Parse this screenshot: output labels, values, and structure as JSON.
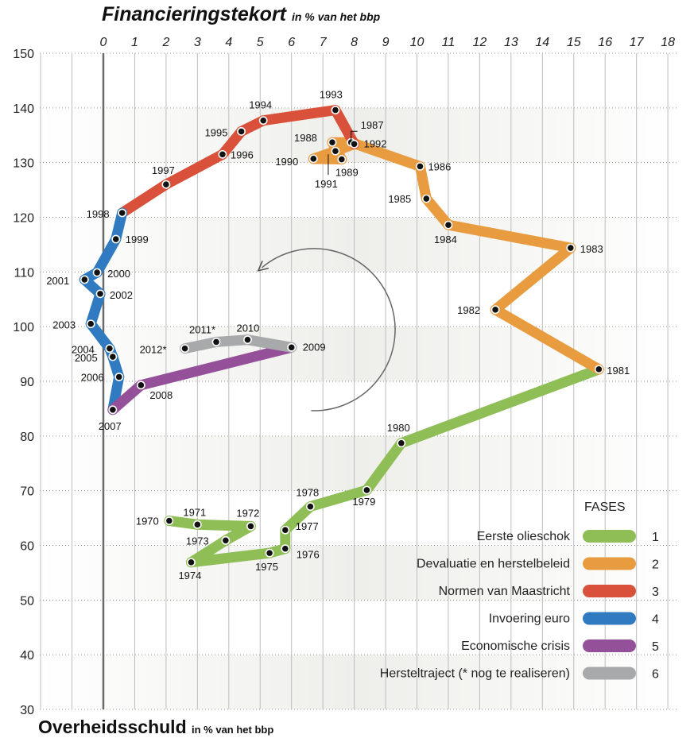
{
  "titles": {
    "top_main": "Financieringstekort",
    "top_sub": "in % van het bbp",
    "bottom_main": "Overheidsschuld",
    "bottom_sub": "in % van het bbp"
  },
  "chart_data": {
    "type": "line",
    "title": "Financieringstekort",
    "title_sub": "in % van het bbp",
    "xlabel": "Financieringstekort in % van het bbp",
    "ylabel": "Overheidsschuld in % van het bbp",
    "xlim": [
      -2,
      18
    ],
    "ylim": [
      30,
      150
    ],
    "x_ticks": [
      "0",
      "1",
      "2",
      "3",
      "4",
      "5",
      "6",
      "7",
      "8",
      "9",
      "10",
      "11",
      "12",
      "13",
      "14",
      "15",
      "16",
      "17",
      "18"
    ],
    "y_ticks": [
      "30",
      "40",
      "50",
      "60",
      "70",
      "80",
      "90",
      "100",
      "110",
      "120",
      "130",
      "140",
      "150"
    ],
    "grid": true,
    "legend_position": "bottom-right",
    "legend_title": "FASES",
    "colors": {
      "1": "#8fbe57",
      "2": "#e89b3f",
      "3": "#d9513a",
      "4": "#2f7ac0",
      "5": "#95509a",
      "6": "#a7a9ab"
    },
    "phases": [
      {
        "id": "1",
        "name": "Eerste olieschok"
      },
      {
        "id": "2",
        "name": "Devaluatie en herstelbeleid"
      },
      {
        "id": "3",
        "name": "Normen van Maastricht"
      },
      {
        "id": "4",
        "name": "Invoering euro"
      },
      {
        "id": "5",
        "name": "Economische crisis"
      },
      {
        "id": "6",
        "name": "Hersteltraject (* nog te realiseren)"
      }
    ],
    "points": [
      {
        "year": "1970",
        "x": 2.1,
        "y": 64.5,
        "phase": "1"
      },
      {
        "year": "1971",
        "x": 3.0,
        "y": 63.8,
        "phase": "1"
      },
      {
        "year": "1972",
        "x": 4.7,
        "y": 63.5,
        "phase": "1"
      },
      {
        "year": "1973",
        "x": 3.9,
        "y": 60.9,
        "phase": "1"
      },
      {
        "year": "1974",
        "x": 2.8,
        "y": 56.9,
        "phase": "1"
      },
      {
        "year": "1975",
        "x": 5.3,
        "y": 58.6,
        "phase": "1"
      },
      {
        "year": "1976",
        "x": 5.8,
        "y": 59.4,
        "phase": "1"
      },
      {
        "year": "1977",
        "x": 5.8,
        "y": 62.8,
        "phase": "1"
      },
      {
        "year": "1978",
        "x": 6.6,
        "y": 67.1,
        "phase": "1"
      },
      {
        "year": "1979",
        "x": 8.4,
        "y": 70.1,
        "phase": "1"
      },
      {
        "year": "1980",
        "x": 9.5,
        "y": 78.7,
        "phase": "1"
      },
      {
        "year": "1981",
        "x": 15.8,
        "y": 92.2,
        "phase": "1"
      },
      {
        "year": "1982",
        "x": 12.5,
        "y": 103.1,
        "phase": "2"
      },
      {
        "year": "1983",
        "x": 14.9,
        "y": 114.4,
        "phase": "2"
      },
      {
        "year": "1984",
        "x": 11.0,
        "y": 118.6,
        "phase": "2"
      },
      {
        "year": "1985",
        "x": 10.3,
        "y": 123.4,
        "phase": "2"
      },
      {
        "year": "1986",
        "x": 10.1,
        "y": 129.3,
        "phase": "2"
      },
      {
        "year": "1987",
        "x": 7.9,
        "y": 133.7,
        "phase": "2"
      },
      {
        "year": "1988",
        "x": 7.3,
        "y": 133.7,
        "phase": "2"
      },
      {
        "year": "1989",
        "x": 7.6,
        "y": 130.6,
        "phase": "2"
      },
      {
        "year": "1990",
        "x": 6.7,
        "y": 130.7,
        "phase": "2"
      },
      {
        "year": "1991",
        "x": 7.4,
        "y": 132.1,
        "phase": "2"
      },
      {
        "year": "1992",
        "x": 8.0,
        "y": 133.4,
        "phase": "2"
      },
      {
        "year": "1993",
        "x": 7.4,
        "y": 139.6,
        "phase": "3"
      },
      {
        "year": "1994",
        "x": 5.1,
        "y": 137.7,
        "phase": "3"
      },
      {
        "year": "1995",
        "x": 4.4,
        "y": 135.7,
        "phase": "3"
      },
      {
        "year": "1996",
        "x": 3.8,
        "y": 131.5,
        "phase": "3"
      },
      {
        "year": "1997",
        "x": 2.0,
        "y": 126.0,
        "phase": "3"
      },
      {
        "year": "1998",
        "x": 0.6,
        "y": 120.8,
        "phase": "3"
      },
      {
        "year": "1999",
        "x": 0.4,
        "y": 116.0,
        "phase": "4"
      },
      {
        "year": "2000",
        "x": -0.2,
        "y": 109.9,
        "phase": "4"
      },
      {
        "year": "2001",
        "x": -0.6,
        "y": 108.6,
        "phase": "4"
      },
      {
        "year": "2002",
        "x": -0.1,
        "y": 106.0,
        "phase": "4"
      },
      {
        "year": "2003",
        "x": -0.4,
        "y": 100.5,
        "phase": "4"
      },
      {
        "year": "2004",
        "x": 0.2,
        "y": 96.0,
        "phase": "4"
      },
      {
        "year": "2005",
        "x": 0.3,
        "y": 94.5,
        "phase": "4"
      },
      {
        "year": "2006",
        "x": 0.5,
        "y": 90.8,
        "phase": "4"
      },
      {
        "year": "2007",
        "x": 0.3,
        "y": 84.8,
        "phase": "4"
      },
      {
        "year": "2008",
        "x": 1.2,
        "y": 89.3,
        "phase": "5"
      },
      {
        "year": "2009",
        "x": 6.0,
        "y": 96.2,
        "phase": "6"
      },
      {
        "year": "2010",
        "x": 4.6,
        "y": 97.6,
        "phase": "6"
      },
      {
        "year": "2011*",
        "x": 3.6,
        "y": 97.2,
        "phase": "6"
      },
      {
        "year": "2012*",
        "x": 2.6,
        "y": 96.0,
        "phase": "6"
      }
    ]
  }
}
